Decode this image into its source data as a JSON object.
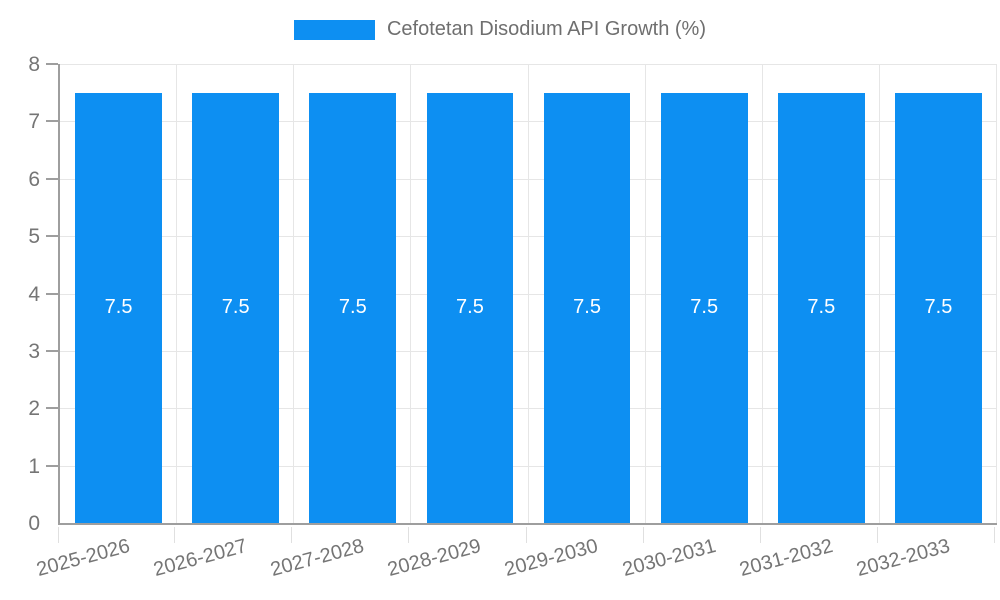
{
  "legend": {
    "label": "Cefotetan Disodium API Growth (%)"
  },
  "colors": {
    "bar": "#0d8ff2",
    "axis_line": "#9e9e9e",
    "h_gridline": "#e6e6e6",
    "v_gridline": "#e6e6e6",
    "y_tick": "#9e9e9e",
    "x_tick": "#e0e0e0",
    "tick_label": "#757575",
    "legend_text": "#6f6f6f",
    "bar_label": "#ffffff",
    "background": "#ffffff"
  },
  "chart_data": {
    "type": "bar",
    "title": "",
    "xlabel": "",
    "ylabel": "",
    "categories": [
      "2025-2026",
      "2026-2027",
      "2027-2028",
      "2028-2029",
      "2029-2030",
      "2030-2031",
      "2031-2032",
      "2032-2033"
    ],
    "series": [
      {
        "name": "Cefotetan Disodium API Growth (%)",
        "values": [
          7.5,
          7.5,
          7.5,
          7.5,
          7.5,
          7.5,
          7.5,
          7.5
        ]
      }
    ],
    "value_labels": [
      "7.5",
      "7.5",
      "7.5",
      "7.5",
      "7.5",
      "7.5",
      "7.5",
      "7.5"
    ],
    "y_ticks": [
      0,
      1,
      2,
      3,
      4,
      5,
      6,
      7,
      8
    ],
    "ylim": [
      0,
      8
    ],
    "grid": "on",
    "legend_position": "top"
  }
}
